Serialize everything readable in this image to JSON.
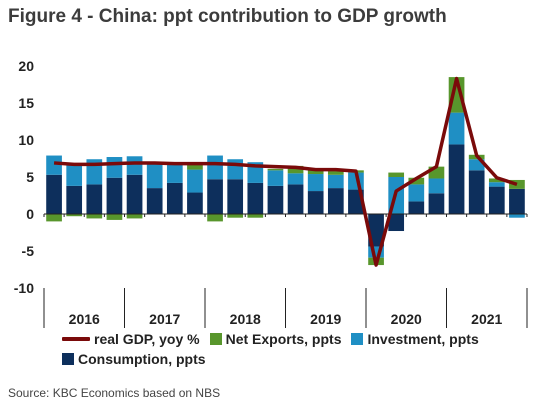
{
  "title": "Figure 4 - China: ppt contribution to GDP growth",
  "source": "Source: KBC Economics based on NBS",
  "colors": {
    "consumption": "#0d2f5c",
    "investment": "#1f8fc4",
    "net_exports": "#58962c",
    "gdp_line": "#7a0a0a",
    "axis": "#222222"
  },
  "chart_data": {
    "type": "bar",
    "stacked": true,
    "quarters": [
      "2016Q1",
      "2016Q2",
      "2016Q3",
      "2016Q4",
      "2017Q1",
      "2017Q2",
      "2017Q3",
      "2017Q4",
      "2018Q1",
      "2018Q2",
      "2018Q3",
      "2018Q4",
      "2019Q1",
      "2019Q2",
      "2019Q3",
      "2019Q4",
      "2020Q1",
      "2020Q2",
      "2020Q3",
      "2020Q4",
      "2021Q1",
      "2021Q2",
      "2021Q3",
      "2021Q4"
    ],
    "year_labels": [
      "2016",
      "2017",
      "2018",
      "2019",
      "2020",
      "2021"
    ],
    "ylim": [
      -10,
      20
    ],
    "yticks": [
      -10,
      -5,
      0,
      5,
      10,
      15,
      20
    ],
    "grid": false,
    "legend_position": "bottom",
    "series": [
      {
        "name": "Consumption, ppts",
        "key": "consumption",
        "kind": "bar",
        "values": [
          5.3,
          3.8,
          4.0,
          4.9,
          5.3,
          3.5,
          4.2,
          2.9,
          4.7,
          4.7,
          4.2,
          3.8,
          4.0,
          3.1,
          3.5,
          3.3,
          -4.4,
          -2.3,
          1.7,
          2.8,
          9.4,
          5.9,
          3.7,
          3.4
        ]
      },
      {
        "name": "Investment, ppts",
        "key": "investment",
        "kind": "bar",
        "values": [
          2.6,
          3.0,
          3.4,
          2.8,
          2.5,
          3.3,
          2.7,
          3.1,
          3.2,
          2.7,
          2.8,
          2.1,
          1.5,
          2.3,
          1.8,
          2.3,
          -1.5,
          5.0,
          2.3,
          2.0,
          4.3,
          1.5,
          0.6,
          -0.5
        ]
      },
      {
        "name": "Net Exports, ppts",
        "key": "net_exports",
        "kind": "bar",
        "values": [
          -1.0,
          -0.3,
          -0.6,
          -0.8,
          -0.6,
          0.0,
          0.0,
          0.8,
          -1.0,
          -0.5,
          -0.5,
          0.2,
          1.0,
          0.8,
          0.5,
          0.3,
          -1.0,
          0.6,
          0.9,
          1.6,
          4.8,
          0.6,
          0.5,
          1.2
        ]
      },
      {
        "name": "real GDP, yoy %",
        "key": "gdp_line",
        "kind": "line",
        "values": [
          6.9,
          6.7,
          6.7,
          6.8,
          6.9,
          6.9,
          6.8,
          6.8,
          6.8,
          6.7,
          6.5,
          6.4,
          6.3,
          6.0,
          6.0,
          5.8,
          -6.9,
          3.1,
          4.8,
          6.4,
          18.3,
          7.9,
          4.9,
          4.0
        ]
      }
    ]
  }
}
